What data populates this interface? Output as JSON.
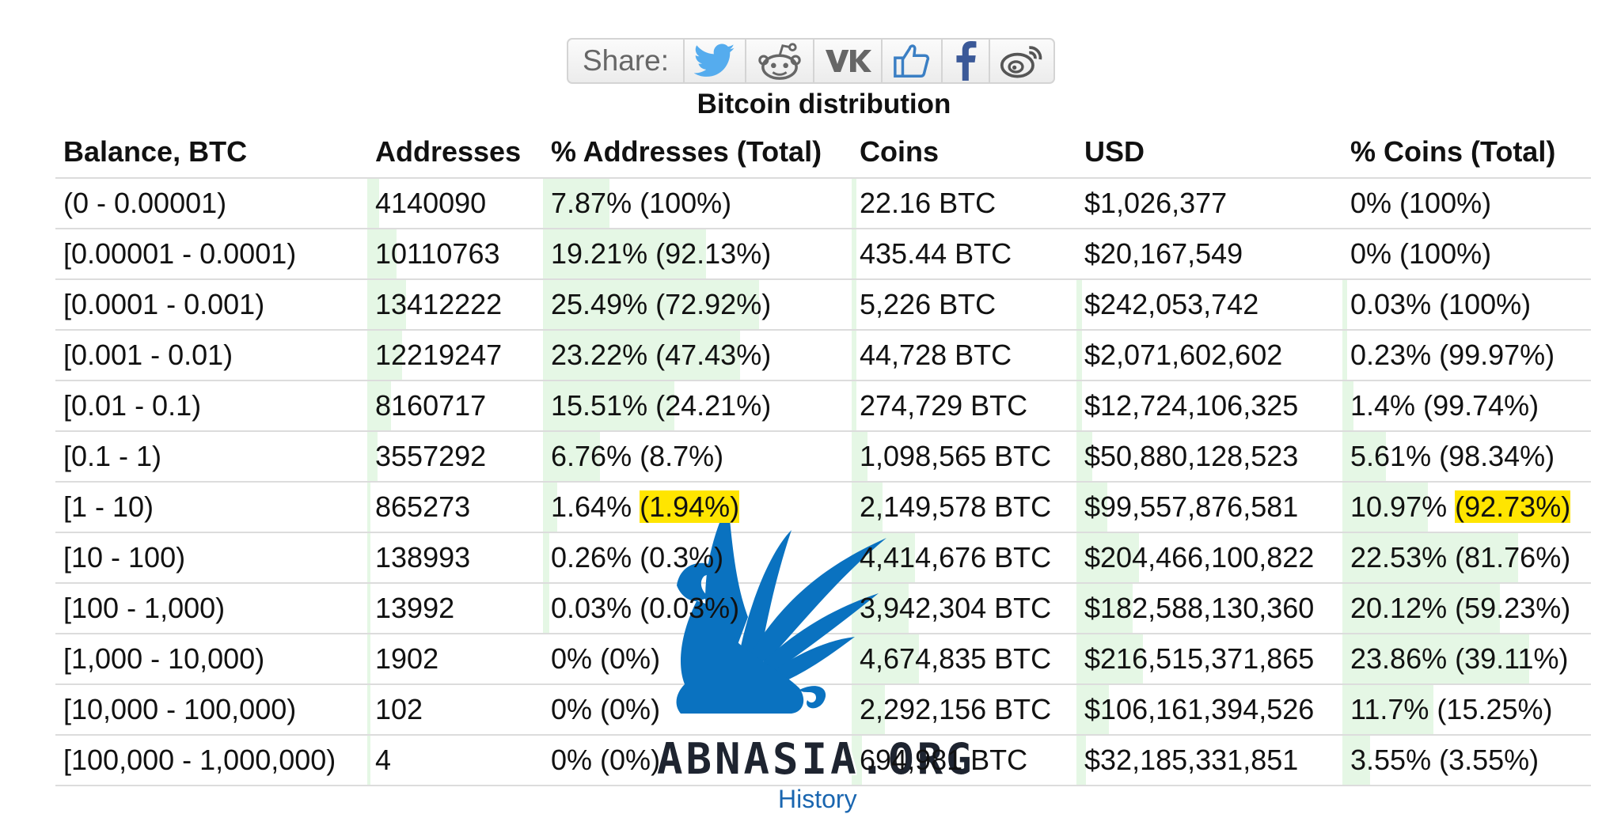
{
  "share": {
    "label": "Share:",
    "buttons": [
      {
        "icon": "twitter-icon",
        "name": "share-twitter-button",
        "color": "#55acee"
      },
      {
        "icon": "reddit-icon",
        "name": "share-reddit-button",
        "color": "#666666"
      },
      {
        "icon": "vk-icon",
        "name": "share-vk-button",
        "color": "#666666"
      },
      {
        "icon": "like-icon",
        "name": "share-like-button",
        "color": "#3b7fc4"
      },
      {
        "icon": "facebook-icon",
        "name": "share-facebook-button",
        "color": "#3b5998"
      },
      {
        "icon": "weibo-icon",
        "name": "share-weibo-button",
        "color": "#555555"
      }
    ]
  },
  "table": {
    "caption": "Bitcoin distribution",
    "columns": [
      "Balance, BTC",
      "Addresses",
      "% Addresses (Total)",
      "Coins",
      "USD",
      "% Coins (Total)"
    ],
    "rows": [
      {
        "balance": "(0 - 0.00001)",
        "addresses": "4140090",
        "pct_addr": "7.87%",
        "pct_addr_total": "(100%)",
        "coins": "22.16 BTC",
        "usd": "$1,026,377",
        "pct_coins": "0%",
        "pct_coins_total": "(100%)"
      },
      {
        "balance": "[0.00001 - 0.0001)",
        "addresses": "10110763",
        "pct_addr": "19.21%",
        "pct_addr_total": "(92.13%)",
        "coins": "435.44 BTC",
        "usd": "$20,167,549",
        "pct_coins": "0%",
        "pct_coins_total": "(100%)"
      },
      {
        "balance": "[0.0001 - 0.001)",
        "addresses": "13412222",
        "pct_addr": "25.49%",
        "pct_addr_total": "(72.92%)",
        "coins": "5,226 BTC",
        "usd": "$242,053,742",
        "pct_coins": "0.03%",
        "pct_coins_total": "(100%)"
      },
      {
        "balance": "[0.001 - 0.01)",
        "addresses": "12219247",
        "pct_addr": "23.22%",
        "pct_addr_total": "(47.43%)",
        "coins": "44,728 BTC",
        "usd": "$2,071,602,602",
        "pct_coins": "0.23%",
        "pct_coins_total": "(99.97%)"
      },
      {
        "balance": "[0.01 - 0.1)",
        "addresses": "8160717",
        "pct_addr": "15.51%",
        "pct_addr_total": "(24.21%)",
        "coins": "274,729 BTC",
        "usd": "$12,724,106,325",
        "pct_coins": "1.4%",
        "pct_coins_total": "(99.74%)"
      },
      {
        "balance": "[0.1 - 1)",
        "addresses": "3557292",
        "pct_addr": "6.76%",
        "pct_addr_total": "(8.7%)",
        "coins": "1,098,565 BTC",
        "usd": "$50,880,128,523",
        "pct_coins": "5.61%",
        "pct_coins_total": "(98.34%)"
      },
      {
        "balance": "[1 - 10)",
        "addresses": "865273",
        "pct_addr": "1.64%",
        "pct_addr_total": "(1.94%)",
        "coins": "2,149,578 BTC",
        "usd": "$99,557,876,581",
        "pct_coins": "10.97%",
        "pct_coins_total": "(92.73%)"
      },
      {
        "balance": "[10 - 100)",
        "addresses": "138993",
        "pct_addr": "0.26%",
        "pct_addr_total": "(0.3%)",
        "coins": "4,414,676 BTC",
        "usd": "$204,466,100,822",
        "pct_coins": "22.53%",
        "pct_coins_total": "(81.76%)"
      },
      {
        "balance": "[100 - 1,000)",
        "addresses": "13992",
        "pct_addr": "0.03%",
        "pct_addr_total": "(0.03%)",
        "coins": "3,942,304 BTC",
        "usd": "$182,588,130,360",
        "pct_coins": "20.12%",
        "pct_coins_total": "(59.23%)"
      },
      {
        "balance": "[1,000 - 10,000)",
        "addresses": "1902",
        "pct_addr": "0%",
        "pct_addr_total": "(0%)",
        "coins": "4,674,835 BTC",
        "usd": "$216,515,371,865",
        "pct_coins": "23.86%",
        "pct_coins_total": "(39.11%)"
      },
      {
        "balance": "[10,000 - 100,000)",
        "addresses": "102",
        "pct_addr": "0%",
        "pct_addr_total": "(0%)",
        "coins": "2,292,156 BTC",
        "usd": "$106,161,394,526",
        "pct_coins": "11.7%",
        "pct_coins_total": "(15.25%)"
      },
      {
        "balance": "[100,000 - 1,000,000)",
        "addresses": "4",
        "pct_addr": "0%",
        "pct_addr_total": "(0%)",
        "coins": "694,981 BTC",
        "usd": "$32,185,331,851",
        "pct_coins": "3.55%",
        "pct_coins_total": "(3.55%)"
      }
    ],
    "highlighted_rows": [
      6
    ]
  },
  "watermark": {
    "text": "ABNASIA.ORG",
    "color": "#0a72c0"
  },
  "footer": {
    "history_link": "History"
  }
}
